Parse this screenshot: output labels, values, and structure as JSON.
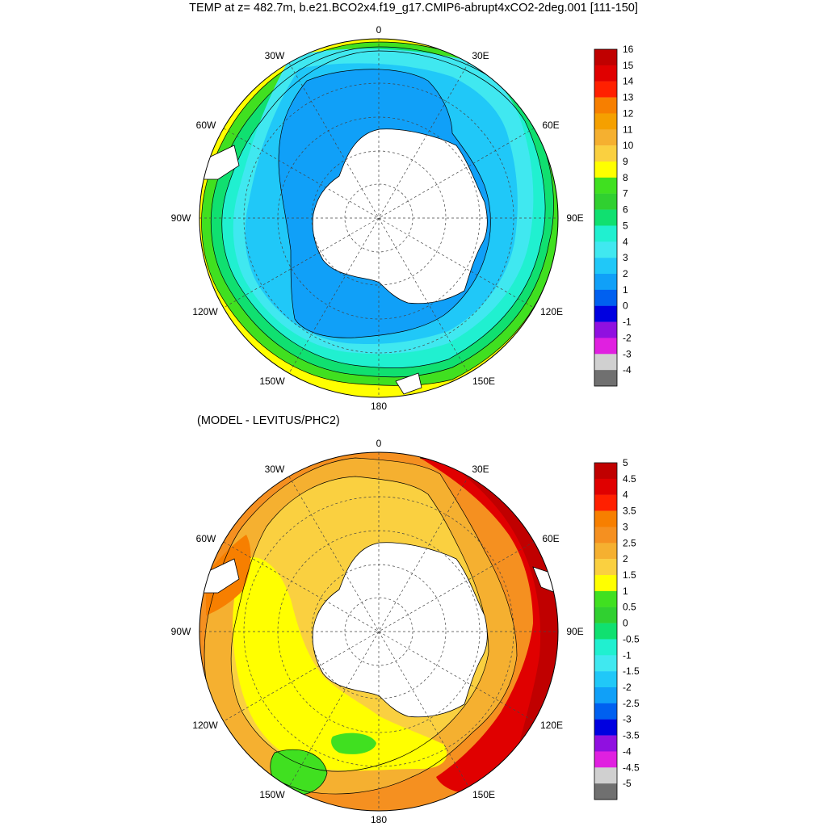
{
  "top_panel": {
    "title": "TEMP at z= 482.7m, b.e21.BCO2x4.f19_g17.CMIP6-abrupt4xCO2-2deg.001 [111-150]",
    "longitude_labels": [
      "0",
      "30E",
      "60E",
      "90E",
      "120E",
      "150E",
      "180",
      "150W",
      "120W",
      "90W",
      "60W",
      "30W"
    ],
    "colorbar": {
      "labels": [
        "16",
        "15",
        "14",
        "13",
        "12",
        "11",
        "10",
        "9",
        "8",
        "7",
        "6",
        "5",
        "4",
        "3",
        "2",
        "1",
        "0",
        "-1",
        "-2",
        "-3",
        "-4"
      ],
      "colors": [
        "#c00000",
        "#e00000",
        "#ff2000",
        "#f77f00",
        "#f5a000",
        "#f5b030",
        "#fad040",
        "#ffff00",
        "#40e020",
        "#30d030",
        "#10e070",
        "#20f0d0",
        "#40e8f0",
        "#20c8f8",
        "#10a0f8",
        "#0060f0",
        "#0000e0",
        "#9010e0",
        "#e020e0",
        "#d0d0d0",
        "#707070"
      ]
    }
  },
  "bottom_panel": {
    "title": "(MODEL - LEVITUS/PHC2)",
    "longitude_labels": [
      "0",
      "30E",
      "60E",
      "90E",
      "120E",
      "150E",
      "180",
      "150W",
      "120W",
      "90W",
      "60W",
      "30W"
    ],
    "colorbar": {
      "labels": [
        "5",
        "4.5",
        "4",
        "3.5",
        "3",
        "2.5",
        "2",
        "1.5",
        "1",
        "0.5",
        "0",
        "-0.5",
        "-1",
        "-1.5",
        "-2",
        "-2.5",
        "-3",
        "-3.5",
        "-4",
        "-4.5",
        "-5"
      ],
      "colors": [
        "#c00000",
        "#e00000",
        "#ff2000",
        "#f77f00",
        "#f59020",
        "#f5b030",
        "#fad040",
        "#ffff00",
        "#40e020",
        "#30d030",
        "#10e070",
        "#20f0d0",
        "#40e8f0",
        "#20c8f8",
        "#10a0f8",
        "#0060f0",
        "#0000e0",
        "#9010e0",
        "#e020e0",
        "#d0d0d0",
        "#707070"
      ]
    }
  }
}
